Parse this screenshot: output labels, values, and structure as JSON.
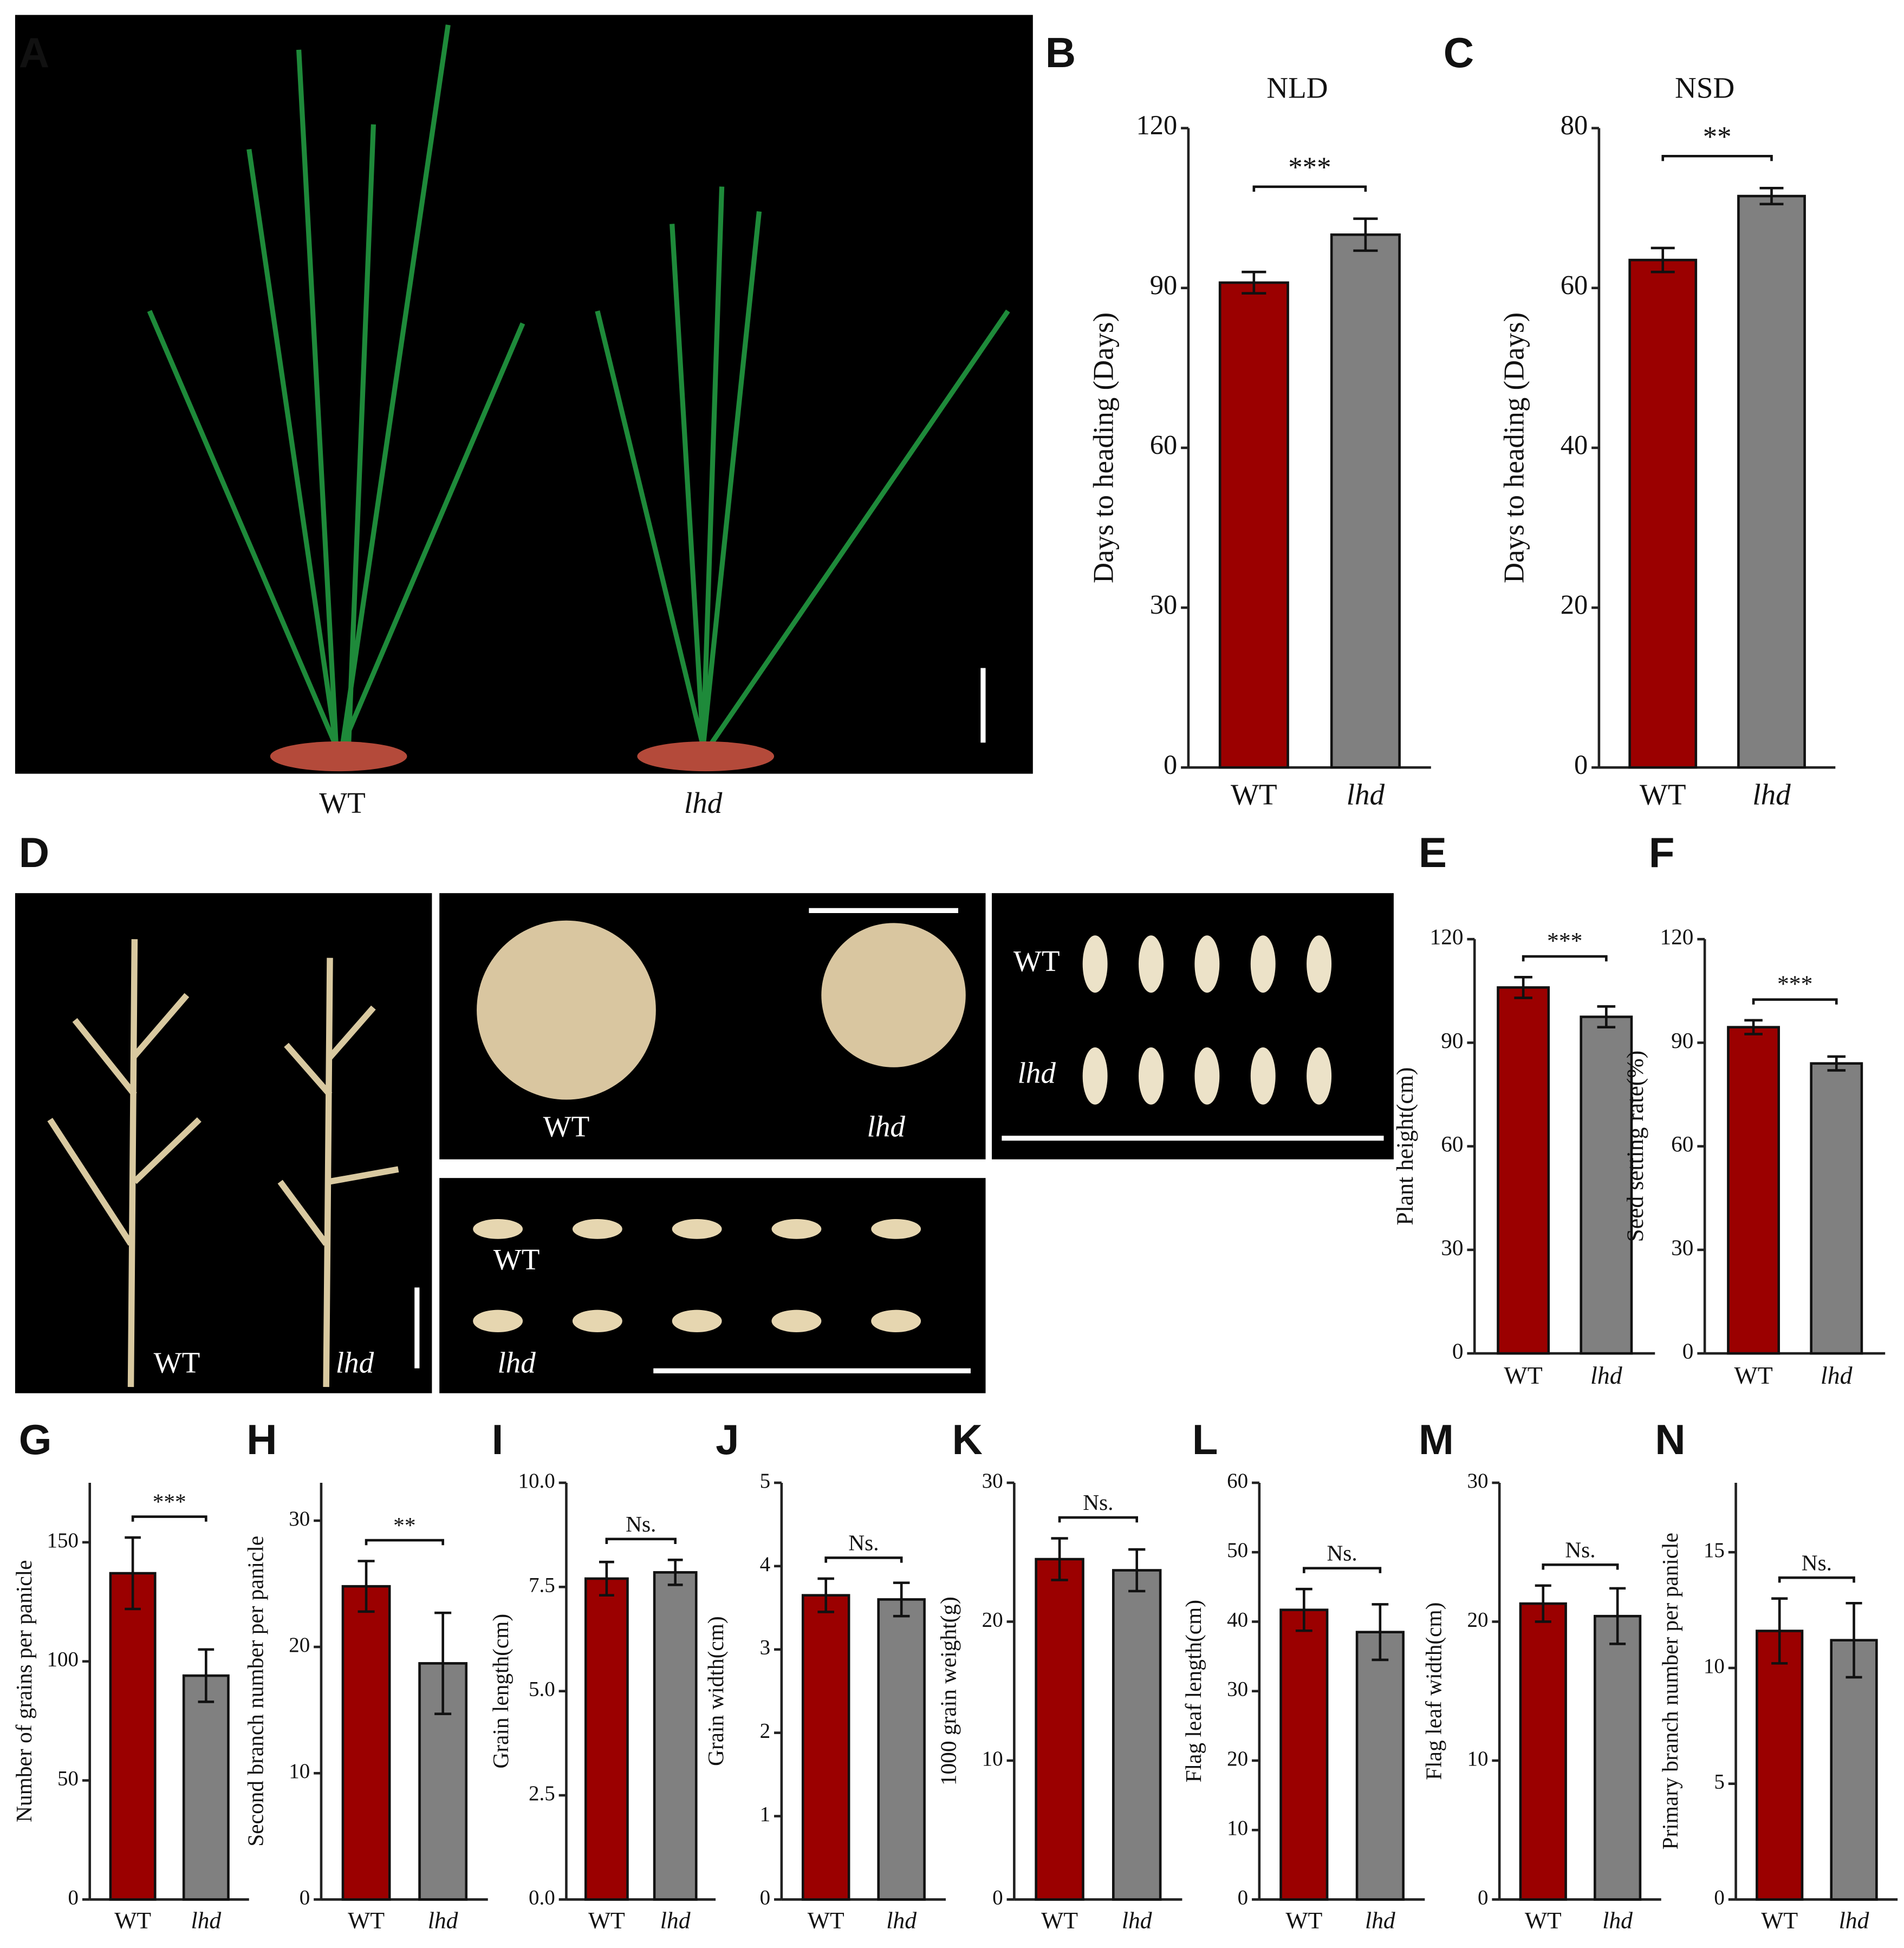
{
  "photos": [
    {
      "letter": "A",
      "labels": [
        "WT",
        "lhd"
      ]
    },
    {
      "letter": "D",
      "labels": [
        "WT",
        "lhd",
        "WT",
        "lhd",
        "WT",
        "lhd",
        "WT",
        "lhd"
      ]
    }
  ],
  "chart_data": [
    {
      "type": "bar",
      "letter": "B",
      "title": "NLD",
      "y_label": "Days to heading (Days)",
      "categories": [
        "WT",
        "lhd"
      ],
      "values": [
        91,
        100
      ],
      "errors": [
        2,
        3
      ],
      "colors": [
        "#9b0000",
        "#808080"
      ],
      "significance": "***",
      "ylim": [
        0,
        120
      ],
      "yticks": [
        0,
        30,
        60,
        90,
        120
      ]
    },
    {
      "type": "bar",
      "letter": "C",
      "title": "NSD",
      "y_label": "Days to heading (Days)",
      "categories": [
        "WT",
        "lhd"
      ],
      "values": [
        63.5,
        71.5
      ],
      "errors": [
        1.5,
        1
      ],
      "colors": [
        "#9b0000",
        "#808080"
      ],
      "significance": "**",
      "ylim": [
        0,
        80
      ],
      "yticks": [
        0,
        20,
        40,
        60,
        80
      ]
    },
    {
      "type": "bar",
      "letter": "E",
      "y_label": "Plant height(cm)",
      "categories": [
        "WT",
        "lhd"
      ],
      "values": [
        106,
        97.5
      ],
      "errors": [
        3,
        3
      ],
      "colors": [
        "#9b0000",
        "#808080"
      ],
      "significance": "***",
      "ylim": [
        0,
        120
      ],
      "yticks": [
        0,
        30,
        60,
        90,
        120
      ]
    },
    {
      "type": "bar",
      "letter": "F",
      "y_label": "Seed setting rate(%)",
      "categories": [
        "WT",
        "lhd"
      ],
      "values": [
        94.5,
        84
      ],
      "errors": [
        2,
        2
      ],
      "colors": [
        "#9b0000",
        "#808080"
      ],
      "significance": "***",
      "ylim": [
        0,
        120
      ],
      "yticks": [
        0,
        30,
        60,
        90,
        120
      ]
    },
    {
      "type": "bar",
      "letter": "G",
      "y_label": "Number of grains per panicle",
      "categories": [
        "WT",
        "lhd"
      ],
      "values": [
        137,
        94
      ],
      "errors": [
        15,
        11
      ],
      "colors": [
        "#9b0000",
        "#808080"
      ],
      "significance": "***",
      "ylim": [
        0,
        175
      ],
      "yticks": [
        0,
        50,
        100,
        150
      ]
    },
    {
      "type": "bar",
      "letter": "H",
      "y_label": "Second branch number per panicle",
      "categories": [
        "WT",
        "lhd"
      ],
      "values": [
        24.8,
        18.7
      ],
      "errors": [
        2,
        4
      ],
      "colors": [
        "#9b0000",
        "#808080"
      ],
      "significance": "**",
      "ylim": [
        0,
        33
      ],
      "yticks": [
        0,
        10,
        20,
        30
      ]
    },
    {
      "type": "bar",
      "letter": "I",
      "y_label": "Grain length(cm)",
      "categories": [
        "WT",
        "lhd"
      ],
      "values": [
        7.7,
        7.85
      ],
      "errors": [
        0.4,
        0.3
      ],
      "colors": [
        "#9b0000",
        "#808080"
      ],
      "significance": "Ns.",
      "ylim": [
        0,
        10
      ],
      "yticks": [
        {
          "value": 0,
          "label": "0.0"
        },
        2.5,
        {
          "value": 5,
          "label": "5.0"
        },
        7.5,
        {
          "value": 10,
          "label": "10.0"
        }
      ]
    },
    {
      "type": "bar",
      "letter": "J",
      "y_label": "Grain width(cm)",
      "categories": [
        "WT",
        "lhd"
      ],
      "values": [
        3.65,
        3.6
      ],
      "errors": [
        0.2,
        0.2
      ],
      "colors": [
        "#9b0000",
        "#808080"
      ],
      "significance": "Ns.",
      "ylim": [
        0,
        5
      ],
      "yticks": [
        0,
        1,
        2,
        3,
        4,
        5
      ]
    },
    {
      "type": "bar",
      "letter": "K",
      "y_label": "1000 grain weight(g)",
      "categories": [
        "WT",
        "lhd"
      ],
      "values": [
        24.5,
        23.7
      ],
      "errors": [
        1.5,
        1.5
      ],
      "colors": [
        "#9b0000",
        "#808080"
      ],
      "significance": "Ns.",
      "ylim": [
        0,
        30
      ],
      "yticks": [
        0,
        10,
        20,
        30
      ]
    },
    {
      "type": "bar",
      "letter": "L",
      "y_label": "Flag leaf length(cm)",
      "categories": [
        "WT",
        "lhd"
      ],
      "values": [
        41.7,
        38.5
      ],
      "errors": [
        3,
        4
      ],
      "colors": [
        "#9b0000",
        "#808080"
      ],
      "significance": "Ns.",
      "ylim": [
        0,
        60
      ],
      "yticks": [
        0,
        10,
        20,
        30,
        40,
        50,
        60
      ]
    },
    {
      "type": "bar",
      "letter": "M",
      "y_label": "Flag leaf width(cm)",
      "categories": [
        "WT",
        "lhd"
      ],
      "values": [
        21.3,
        20.4
      ],
      "errors": [
        1.3,
        2
      ],
      "colors": [
        "#9b0000",
        "#808080"
      ],
      "significance": "Ns.",
      "ylim": [
        0,
        30
      ],
      "yticks": [
        0,
        10,
        20,
        30
      ]
    },
    {
      "type": "bar",
      "letter": "N",
      "y_label": "Primary branch number per panicle",
      "categories": [
        "WT",
        "lhd"
      ],
      "values": [
        11.6,
        11.2
      ],
      "errors": [
        1.4,
        1.6
      ],
      "colors": [
        "#9b0000",
        "#808080"
      ],
      "significance": "Ns.",
      "ylim": [
        0,
        18
      ],
      "yticks": [
        0,
        5,
        10,
        15
      ]
    }
  ]
}
